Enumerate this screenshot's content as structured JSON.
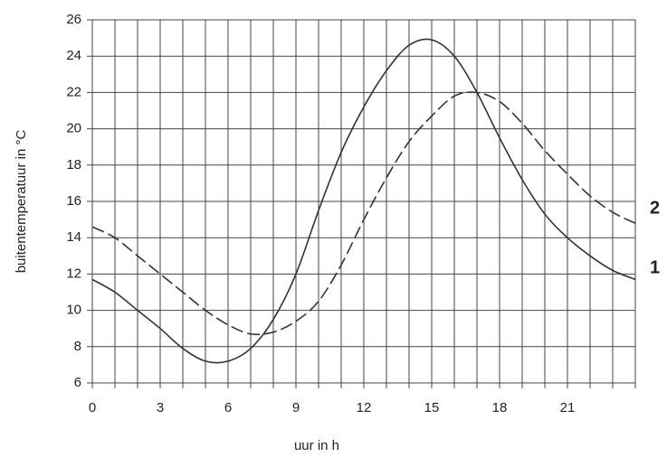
{
  "chart_data": {
    "type": "line",
    "x_label": "uur in h",
    "y_label": "buitentemperatuur in °C",
    "x": [
      0,
      1,
      2,
      3,
      4,
      5,
      6,
      7,
      8,
      9,
      10,
      11,
      12,
      13,
      14,
      15,
      16,
      17,
      18,
      19,
      20,
      21,
      22,
      23,
      24
    ],
    "series": [
      {
        "name": "1",
        "color": "#333333",
        "dashed": false,
        "values": [
          11.7,
          11.0,
          10.0,
          9.0,
          7.9,
          7.2,
          7.2,
          7.9,
          9.5,
          12.0,
          15.5,
          18.7,
          21.2,
          23.2,
          24.6,
          24.9,
          24.0,
          22.0,
          19.5,
          17.2,
          15.3,
          14.0,
          13.0,
          12.2,
          11.7
        ]
      },
      {
        "name": "2",
        "color": "#333333",
        "dashed": true,
        "values": [
          14.6,
          14.0,
          13.0,
          12.0,
          11.0,
          10.0,
          9.2,
          8.7,
          8.8,
          9.4,
          10.5,
          12.5,
          15.0,
          17.3,
          19.3,
          20.7,
          21.8,
          22.0,
          21.5,
          20.3,
          18.8,
          17.5,
          16.3,
          15.4,
          14.8
        ]
      }
    ],
    "xlim": [
      0,
      24
    ],
    "xticks": [
      0,
      3,
      6,
      9,
      12,
      15,
      18,
      21
    ],
    "xgrid": [
      0,
      1,
      2,
      3,
      4,
      5,
      6,
      7,
      8,
      9,
      10,
      11,
      12,
      13,
      14,
      15,
      16,
      17,
      18,
      19,
      20,
      21,
      22,
      23,
      24
    ],
    "ylim": [
      6,
      26
    ],
    "yticks": [
      6,
      8,
      10,
      12,
      14,
      16,
      18,
      20,
      22,
      24,
      26
    ],
    "grid": true
  }
}
